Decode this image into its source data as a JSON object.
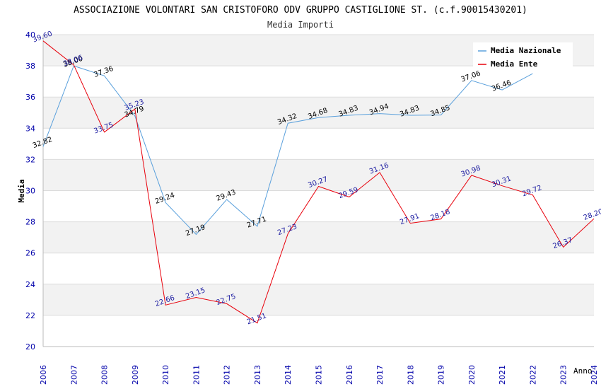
{
  "chart_data": {
    "type": "line",
    "title": "ASSOCIAZIONE VOLONTARI SAN CRISTOFORO ODV GRUPPO CASTIGLIONE ST. (c.f.90015430201)",
    "subtitle": "Media Importi",
    "xlabel": "Anno",
    "ylabel": "Media",
    "ylim": [
      20,
      40
    ],
    "yticks": [
      "20",
      "22",
      "24",
      "26",
      "28",
      "30",
      "32",
      "34",
      "36",
      "38",
      "40"
    ],
    "categories": [
      "2006",
      "2007",
      "2008",
      "2009",
      "2010",
      "2011",
      "2012",
      "2013",
      "2014",
      "2015",
      "2016",
      "2017",
      "2018",
      "2019",
      "2020",
      "2021",
      "2022",
      "2023",
      "2024"
    ],
    "grid": true,
    "legend_position": "top-right",
    "series": [
      {
        "name": "Media Nazionale",
        "color": "#5aa0dc",
        "values": [
          32.82,
          38.0,
          37.36,
          34.79,
          29.24,
          27.19,
          29.43,
          27.71,
          34.32,
          34.68,
          34.83,
          34.94,
          34.83,
          34.85,
          37.06,
          36.46,
          37.5,
          null,
          null
        ],
        "labels": [
          "32.82",
          "38.00",
          "37.36",
          "34.79",
          "29.24",
          "27.19",
          "29.43",
          "27.71",
          "34.32",
          "34.68",
          "34.83",
          "34.94",
          "34.83",
          "34.85",
          "37.06",
          "36.46",
          "",
          "",
          ""
        ]
      },
      {
        "name": "Media Ente",
        "color": "#e8000b",
        "values": [
          39.6,
          38.06,
          33.75,
          35.23,
          22.66,
          23.15,
          22.75,
          21.51,
          27.23,
          30.27,
          29.59,
          31.16,
          27.91,
          28.18,
          30.98,
          30.31,
          29.72,
          26.37,
          28.2
        ],
        "labels": [
          "39.60",
          "38.06",
          "33.75",
          "35.23",
          "22.66",
          "23.15",
          "22.75",
          "21.51",
          "27.23",
          "30.27",
          "29.59",
          "31.16",
          "27.91",
          "28.18",
          "30.98",
          "30.31",
          "29.72",
          "26.37",
          "28.20"
        ]
      }
    ]
  }
}
